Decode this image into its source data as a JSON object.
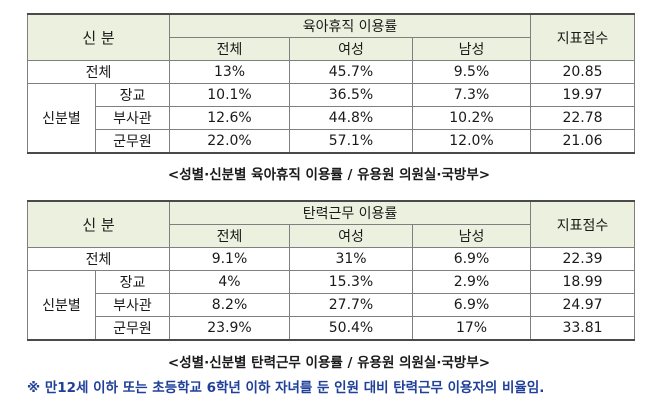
{
  "table1": {
    "group_header": "신 분",
    "metric_header": "육아휴직 이용률",
    "score_header": "지표점수",
    "subheaders": [
      "전체",
      "여성",
      "남성"
    ],
    "total_row": {
      "label": "전체",
      "values": [
        "13%",
        "45.7%",
        "9.5%"
      ],
      "score": "20.85"
    },
    "group_label": "신분별",
    "rows": [
      {
        "label": "장교",
        "values": [
          "10.1%",
          "36.5%",
          "7.3%"
        ],
        "score": "19.97"
      },
      {
        "label": "부사관",
        "values": [
          "12.6%",
          "44.8%",
          "10.2%"
        ],
        "score": "22.78"
      },
      {
        "label": "군무원",
        "values": [
          "22.0%",
          "57.1%",
          "12.0%"
        ],
        "score": "21.06"
      }
    ],
    "caption": "<성별·신분별 육아휴직 이용률 / 유용원 의원실·국방부>"
  },
  "table2": {
    "group_header": "신 분",
    "metric_header": "탄력근무 이용률",
    "score_header": "지표점수",
    "subheaders": [
      "전체",
      "여성",
      "남성"
    ],
    "total_row": {
      "label": "전체",
      "values": [
        "9.1%",
        "31%",
        "6.9%"
      ],
      "score": "22.39"
    },
    "group_label": "신분별",
    "rows": [
      {
        "label": "장교",
        "values": [
          "4%",
          "15.3%",
          "2.9%"
        ],
        "score": "18.99"
      },
      {
        "label": "부사관",
        "values": [
          "8.2%",
          "27.7%",
          "6.9%"
        ],
        "score": "24.97"
      },
      {
        "label": "군무원",
        "values": [
          "23.9%",
          "50.4%",
          "17%"
        ],
        "score": "33.81"
      }
    ],
    "caption": "<성별·신분별 탄력근무 이용률 / 유용원 의원실·국방부>"
  },
  "footnote": "※ 만12세 이하 또는 초등학교 6학년 이하 자녀를 둔 인원 대비 탄력근무 이용자의 비율임."
}
